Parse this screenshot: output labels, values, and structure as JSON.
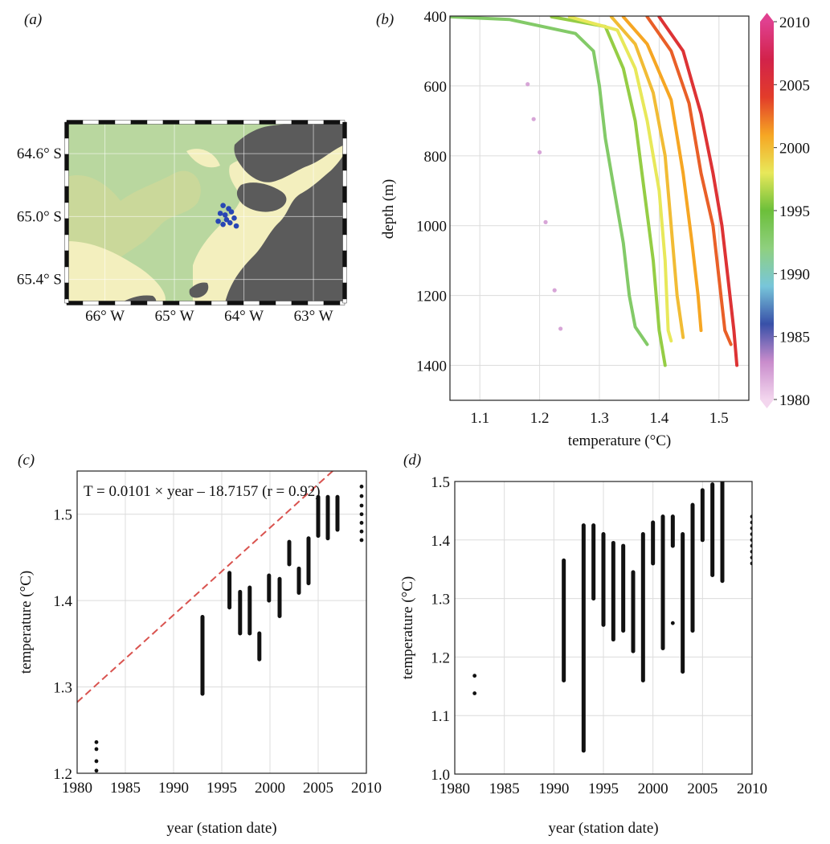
{
  "panels": {
    "a": "(a)",
    "b": "(b)",
    "c": "(c)",
    "d": "(d)"
  },
  "colors": {
    "land": "#5b5b5b",
    "ocean_deep": "#b9d79f",
    "ocean_shallow": "#f3efbe",
    "stations": "#2846b4",
    "trend_line": "#d9534f",
    "points": "#111111"
  },
  "chart_data": [
    {
      "panel": "a",
      "type": "map",
      "lat_ticks": [
        "64.6° S",
        "65.0° S",
        "65.4° S"
      ],
      "lon_ticks": [
        "66° W",
        "65° W",
        "64° W",
        "63° W"
      ],
      "stations": [
        {
          "lon": -64.3,
          "lat": -64.93
        },
        {
          "lon": -64.22,
          "lat": -64.95
        },
        {
          "lon": -64.34,
          "lat": -64.98
        },
        {
          "lon": -64.27,
          "lat": -64.99
        },
        {
          "lon": -64.18,
          "lat": -64.97
        },
        {
          "lon": -64.25,
          "lat": -65.02
        },
        {
          "lon": -64.37,
          "lat": -65.03
        },
        {
          "lon": -64.14,
          "lat": -65.01
        },
        {
          "lon": -64.2,
          "lat": -65.04
        },
        {
          "lon": -64.3,
          "lat": -65.05
        },
        {
          "lon": -64.11,
          "lat": -65.06
        }
      ]
    },
    {
      "panel": "b",
      "type": "line",
      "xlabel": "temperature (°C)",
      "ylabel": "depth (m)",
      "xlim": [
        1.05,
        1.55
      ],
      "ylim": [
        400,
        1500
      ],
      "y_inverted": true,
      "x_ticks": [
        "1.1",
        "1.2",
        "1.3",
        "1.4",
        "1.5"
      ],
      "y_ticks": [
        "400",
        "600",
        "800",
        "1000",
        "1200",
        "1400"
      ],
      "colorbar": {
        "min": 1980,
        "max": 2010,
        "ticks": [
          "1980",
          "1985",
          "1990",
          "1995",
          "2000",
          "2005",
          "2010"
        ],
        "stops": [
          "#f3d6ee",
          "#c98ccc",
          "#3850a8",
          "#78c6da",
          "#8fd07f",
          "#6cbf3a",
          "#e8e85a",
          "#f6a623",
          "#e23c2a",
          "#d2224a",
          "#e0408f"
        ]
      },
      "series": [
        {
          "year": 1982,
          "style": "dots",
          "points": [
            [
              1.18,
              595
            ],
            [
              1.19,
              695
            ],
            [
              1.2,
              790
            ],
            [
              1.21,
              990
            ],
            [
              1.225,
              1185
            ],
            [
              1.235,
              1295
            ]
          ]
        },
        {
          "year": 1993,
          "points": [
            [
              1.05,
              402
            ],
            [
              1.15,
              410
            ],
            [
              1.26,
              450
            ],
            [
              1.29,
              500
            ],
            [
              1.3,
              600
            ],
            [
              1.31,
              750
            ],
            [
              1.325,
              900
            ],
            [
              1.34,
              1050
            ],
            [
              1.35,
              1200
            ],
            [
              1.36,
              1290
            ],
            [
              1.38,
              1340
            ]
          ]
        },
        {
          "year": 1996,
          "points": [
            [
              1.22,
              402
            ],
            [
              1.31,
              430
            ],
            [
              1.34,
              550
            ],
            [
              1.36,
              700
            ],
            [
              1.375,
              900
            ],
            [
              1.39,
              1100
            ],
            [
              1.4,
              1300
            ],
            [
              1.41,
              1400
            ]
          ]
        },
        {
          "year": 1998,
          "points": [
            [
              1.25,
              402
            ],
            [
              1.33,
              440
            ],
            [
              1.36,
              550
            ],
            [
              1.38,
              700
            ],
            [
              1.4,
              900
            ],
            [
              1.41,
              1100
            ],
            [
              1.415,
              1300
            ],
            [
              1.42,
              1330
            ]
          ]
        },
        {
          "year": 2000,
          "points": [
            [
              1.32,
              402
            ],
            [
              1.36,
              480
            ],
            [
              1.39,
              620
            ],
            [
              1.41,
              800
            ],
            [
              1.42,
              1000
            ],
            [
              1.43,
              1200
            ],
            [
              1.44,
              1320
            ]
          ]
        },
        {
          "year": 2001,
          "points": [
            [
              1.34,
              402
            ],
            [
              1.38,
              480
            ],
            [
              1.42,
              640
            ],
            [
              1.44,
              850
            ],
            [
              1.455,
              1050
            ],
            [
              1.465,
              1200
            ],
            [
              1.47,
              1300
            ]
          ]
        },
        {
          "year": 2003,
          "points": [
            [
              1.38,
              402
            ],
            [
              1.42,
              500
            ],
            [
              1.45,
              650
            ],
            [
              1.47,
              850
            ],
            [
              1.49,
              1000
            ],
            [
              1.5,
              1150
            ],
            [
              1.51,
              1300
            ],
            [
              1.52,
              1340
            ]
          ]
        },
        {
          "year": 2005,
          "points": [
            [
              1.4,
              402
            ],
            [
              1.44,
              500
            ],
            [
              1.47,
              680
            ],
            [
              1.49,
              850
            ],
            [
              1.505,
              1000
            ],
            [
              1.515,
              1150
            ],
            [
              1.525,
              1300
            ],
            [
              1.53,
              1400
            ]
          ]
        }
      ]
    },
    {
      "panel": "c",
      "type": "scatter",
      "xlabel": "year (station date)",
      "ylabel": "temperature (°C)",
      "xlim": [
        1980,
        2010
      ],
      "ylim": [
        1.2,
        1.55
      ],
      "x_ticks": [
        "1980",
        "1985",
        "1990",
        "1995",
        "2000",
        "2005",
        "2010"
      ],
      "y_ticks": [
        "1.2",
        "1.3",
        "1.4",
        "1.5"
      ],
      "annotation": "T = 0.0101 × year – 18.7157 (r = 0.92)",
      "trend": {
        "slope": 0.0101,
        "intercept": -18.7157,
        "r": 0.92
      },
      "ranges": [
        {
          "year": 1993,
          "min": 1.292,
          "max": 1.381
        },
        {
          "year": 1995.8,
          "min": 1.392,
          "max": 1.432
        },
        {
          "year": 1996.9,
          "min": 1.362,
          "max": 1.41
        },
        {
          "year": 1997.9,
          "min": 1.362,
          "max": 1.415
        },
        {
          "year": 1998.9,
          "min": 1.332,
          "max": 1.362
        },
        {
          "year": 1999.9,
          "min": 1.4,
          "max": 1.429
        },
        {
          "year": 2001,
          "min": 1.382,
          "max": 1.425
        },
        {
          "year": 2002,
          "min": 1.442,
          "max": 1.468
        },
        {
          "year": 2003,
          "min": 1.409,
          "max": 1.437
        },
        {
          "year": 2004,
          "min": 1.42,
          "max": 1.472
        },
        {
          "year": 2005,
          "min": 1.475,
          "max": 1.52
        },
        {
          "year": 2006,
          "min": 1.472,
          "max": 1.52
        },
        {
          "year": 2007,
          "min": 1.482,
          "max": 1.52
        }
      ],
      "dots": [
        [
          1982,
          1.236
        ],
        [
          1982,
          1.228
        ],
        [
          1982,
          1.214
        ],
        [
          1982,
          1.203
        ],
        [
          2009.5,
          1.532
        ],
        [
          2009.5,
          1.521
        ],
        [
          2009.5,
          1.51
        ],
        [
          2009.5,
          1.5
        ],
        [
          2009.5,
          1.49
        ],
        [
          2009.5,
          1.48
        ],
        [
          2009.5,
          1.47
        ]
      ]
    },
    {
      "panel": "d",
      "type": "scatter",
      "xlabel": "year (station date)",
      "ylabel": "temperature (°C)",
      "xlim": [
        1980,
        2010
      ],
      "ylim": [
        1.0,
        1.5
      ],
      "x_ticks": [
        "1980",
        "1985",
        "1990",
        "1995",
        "2000",
        "2005",
        "2010"
      ],
      "y_ticks": [
        "1.0",
        "1.1",
        "1.2",
        "1.3",
        "1.4",
        "1.5"
      ],
      "ranges": [
        {
          "year": 1991,
          "min": 1.16,
          "max": 1.365
        },
        {
          "year": 1993,
          "min": 1.04,
          "max": 1.425
        },
        {
          "year": 1994,
          "min": 1.3,
          "max": 1.425
        },
        {
          "year": 1995,
          "min": 1.255,
          "max": 1.41
        },
        {
          "year": 1996,
          "min": 1.23,
          "max": 1.395
        },
        {
          "year": 1997,
          "min": 1.245,
          "max": 1.39
        },
        {
          "year": 1998,
          "min": 1.21,
          "max": 1.345
        },
        {
          "year": 1999,
          "min": 1.16,
          "max": 1.41
        },
        {
          "year": 2000,
          "min": 1.36,
          "max": 1.43
        },
        {
          "year": 2001,
          "min": 1.215,
          "max": 1.44
        },
        {
          "year": 2002,
          "min": 1.39,
          "max": 1.44
        },
        {
          "year": 2003,
          "min": 1.175,
          "max": 1.41
        },
        {
          "year": 2004,
          "min": 1.245,
          "max": 1.46
        },
        {
          "year": 2005,
          "min": 1.4,
          "max": 1.485
        },
        {
          "year": 2006,
          "min": 1.34,
          "max": 1.495
        },
        {
          "year": 2007,
          "min": 1.33,
          "max": 1.5
        }
      ],
      "dots": [
        [
          1982,
          1.168
        ],
        [
          1982,
          1.138
        ],
        [
          2002,
          1.258
        ],
        [
          2010,
          1.44
        ],
        [
          2010,
          1.43
        ],
        [
          2010,
          1.42
        ],
        [
          2010,
          1.41
        ],
        [
          2010,
          1.4
        ],
        [
          2010,
          1.39
        ],
        [
          2010,
          1.38
        ],
        [
          2010,
          1.37
        ],
        [
          2010,
          1.36
        ]
      ]
    }
  ]
}
